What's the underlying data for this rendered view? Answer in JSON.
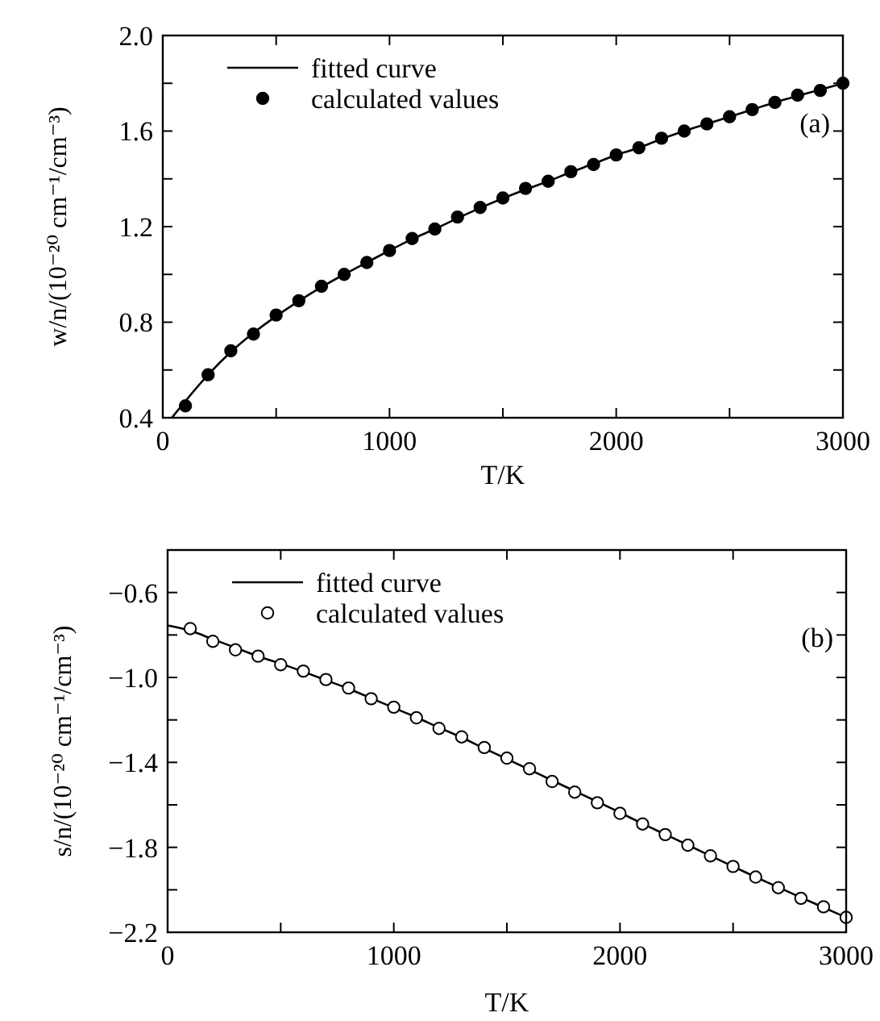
{
  "chart_data": [
    {
      "type": "line",
      "xlabel": "T/K",
      "ylabel": "w/n/(10⁻²⁰ cm⁻¹/cm⁻³)",
      "annotations": [
        "(a)"
      ],
      "xlim": [
        0,
        3000
      ],
      "ylim": [
        0.4,
        2.0
      ],
      "xticks": [
        0,
        {
          "value": 500,
          "label": null
        },
        1000,
        {
          "value": 1500,
          "label": null
        },
        2000,
        {
          "value": 2500,
          "label": null
        },
        3000
      ],
      "yticks": [
        0.4,
        {
          "value": 0.6,
          "label": null
        },
        0.8,
        {
          "value": 1.0,
          "label": null
        },
        1.2,
        {
          "value": 1.4,
          "label": null
        },
        1.6,
        {
          "value": 1.8,
          "label": null
        },
        {
          "value": 2.0,
          "label": "2.0"
        }
      ],
      "legend": "top left",
      "grid": false,
      "series": [
        {
          "name": "fitted curve",
          "color": "#000000",
          "marker": "none",
          "line_style": "solid",
          "x": [
            40,
            100,
            200,
            300,
            400,
            500,
            600,
            700,
            800,
            900,
            1000,
            1100,
            1200,
            1300,
            1400,
            1500,
            1600,
            1700,
            1800,
            1900,
            2000,
            2100,
            2200,
            2300,
            2400,
            2500,
            2600,
            2700,
            2800,
            2900,
            3000
          ],
          "values": [
            0.4,
            0.47,
            0.58,
            0.675,
            0.755,
            0.825,
            0.888,
            0.947,
            1.0,
            1.05,
            1.1,
            1.148,
            1.19,
            1.235,
            1.278,
            1.318,
            1.355,
            1.39,
            1.428,
            1.463,
            1.5,
            1.53,
            1.567,
            1.6,
            1.63,
            1.66,
            1.69,
            1.72,
            1.747,
            1.773,
            1.8
          ]
        },
        {
          "name": "calculated values",
          "type": "scatter",
          "color": "#000000",
          "marker": "circle",
          "x": [
            100,
            200,
            300,
            400,
            500,
            600,
            700,
            800,
            900,
            1000,
            1100,
            1200,
            1300,
            1400,
            1500,
            1600,
            1700,
            1800,
            1900,
            2000,
            2100,
            2200,
            2300,
            2400,
            2500,
            2600,
            2700,
            2800,
            2900,
            3000
          ],
          "values": [
            0.45,
            0.58,
            0.68,
            0.75,
            0.83,
            0.89,
            0.95,
            1.0,
            1.05,
            1.1,
            1.15,
            1.19,
            1.24,
            1.28,
            1.32,
            1.36,
            1.39,
            1.43,
            1.46,
            1.5,
            1.53,
            1.57,
            1.6,
            1.63,
            1.66,
            1.69,
            1.72,
            1.75,
            1.77,
            1.8
          ]
        }
      ]
    },
    {
      "type": "line",
      "xlabel": "T/K",
      "ylabel": "s/n/(10⁻²⁰ cm⁻¹/cm⁻³)",
      "annotations": [
        "(b)"
      ],
      "xlim": [
        0,
        3000
      ],
      "ylim": [
        -2.2,
        -0.4
      ],
      "xticks": [
        0,
        {
          "value": 500,
          "label": null
        },
        1000,
        {
          "value": 1500,
          "label": null
        },
        2000,
        {
          "value": 2500,
          "label": null
        },
        3000
      ],
      "yticks": [
        {
          "value": -2.2,
          "label": "−2.2"
        },
        {
          "value": -2.0,
          "label": null
        },
        {
          "value": -1.8,
          "label": "−1.8"
        },
        {
          "value": -1.6,
          "label": null
        },
        {
          "value": -1.4,
          "label": "−1.4"
        },
        {
          "value": -1.2,
          "label": null
        },
        {
          "value": -1.0,
          "label": "−1.0"
        },
        {
          "value": -0.8,
          "label": null
        },
        {
          "value": -0.6,
          "label": "−0.6"
        }
      ],
      "legend": "top left",
      "grid": false,
      "series": [
        {
          "name": "fitted curve",
          "color": "#000000",
          "marker": "none",
          "line_style": "solid",
          "x": [
            0,
            100,
            200,
            300,
            400,
            500,
            600,
            700,
            800,
            900,
            1000,
            1100,
            1200,
            1300,
            1400,
            1500,
            1600,
            1700,
            1800,
            1900,
            2000,
            2100,
            2200,
            2300,
            2400,
            2500,
            2600,
            2700,
            2800,
            2900,
            3000
          ],
          "values": [
            -0.755,
            -0.78,
            -0.82,
            -0.86,
            -0.9,
            -0.935,
            -0.973,
            -1.013,
            -1.053,
            -1.098,
            -1.143,
            -1.188,
            -1.236,
            -1.283,
            -1.334,
            -1.384,
            -1.434,
            -1.485,
            -1.535,
            -1.585,
            -1.636,
            -1.689,
            -1.739,
            -1.789,
            -1.84,
            -1.89,
            -1.94,
            -1.988,
            -2.036,
            -2.083,
            -2.13
          ]
        },
        {
          "name": "calculated values",
          "type": "scatter",
          "color": "#ffffff",
          "marker": "circle",
          "x": [
            100,
            200,
            300,
            400,
            500,
            600,
            700,
            800,
            900,
            1000,
            1100,
            1200,
            1300,
            1400,
            1500,
            1600,
            1700,
            1800,
            1900,
            2000,
            2100,
            2200,
            2300,
            2400,
            2500,
            2600,
            2700,
            2800,
            2900,
            3000
          ],
          "values": [
            -0.77,
            -0.83,
            -0.87,
            -0.9,
            -0.94,
            -0.97,
            -1.01,
            -1.05,
            -1.1,
            -1.14,
            -1.19,
            -1.24,
            -1.28,
            -1.33,
            -1.38,
            -1.43,
            -1.49,
            -1.54,
            -1.59,
            -1.64,
            -1.69,
            -1.74,
            -1.79,
            -1.84,
            -1.89,
            -1.94,
            -1.99,
            -2.04,
            -2.08,
            -2.13
          ]
        }
      ]
    }
  ]
}
